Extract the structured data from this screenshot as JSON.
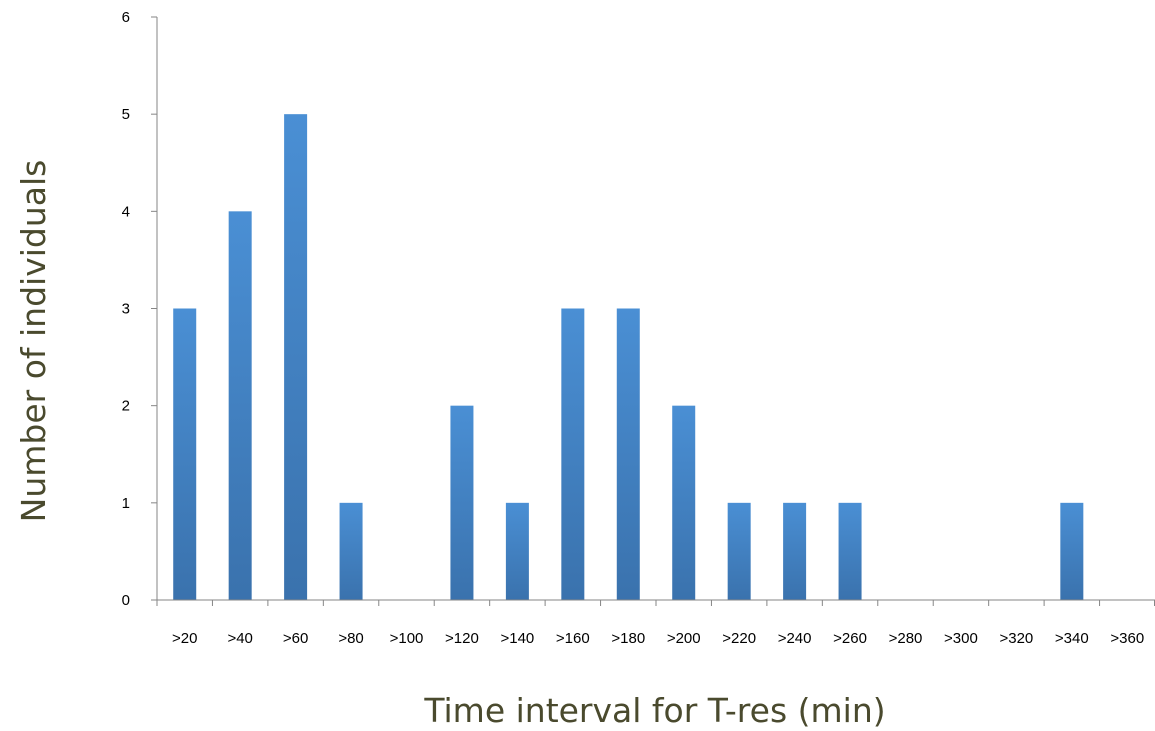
{
  "chart_data": {
    "type": "bar",
    "title": "",
    "xlabel": "Time interval for T-res (min)",
    "ylabel": "Number of individuals",
    "categories": [
      ">20",
      ">40",
      ">60",
      ">80",
      ">100",
      ">120",
      ">140",
      ">160",
      ">180",
      ">200",
      ">220",
      ">240",
      ">260",
      ">280",
      ">300",
      ">320",
      ">340",
      ">360"
    ],
    "values": [
      3,
      4,
      5,
      1,
      0,
      2,
      1,
      3,
      3,
      2,
      1,
      1,
      1,
      0,
      0,
      0,
      1,
      0
    ],
    "ylim": [
      0,
      6
    ],
    "yticks": [
      0,
      1,
      2,
      3,
      4,
      5,
      6
    ],
    "grid": false,
    "legend": "none",
    "bar_color": "#4a8fd4",
    "bar_color_dark": "#3a72ad"
  }
}
